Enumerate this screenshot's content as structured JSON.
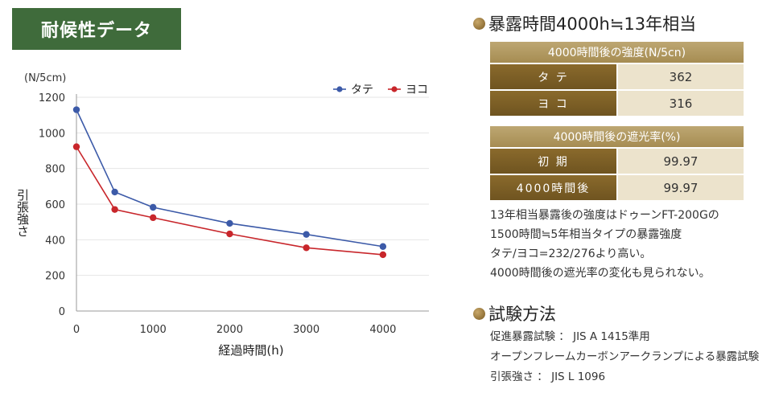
{
  "header": {
    "title": "耐候性データ"
  },
  "chart_data": {
    "type": "line",
    "unit_label": "(N/5cm)",
    "xlabel": "経過時間(h)",
    "ylabel": "引張強さ",
    "xlim": [
      0,
      4600
    ],
    "ylim": [
      0,
      1200
    ],
    "x_ticks": [
      0,
      1000,
      2000,
      3000,
      4000
    ],
    "y_ticks": [
      0,
      200,
      400,
      600,
      800,
      1000,
      1200
    ],
    "legend_position": "top-right",
    "grid": true,
    "series": [
      {
        "name": "タテ",
        "color": "#3c5aa8",
        "points": [
          [
            0,
            1130
          ],
          [
            500,
            668
          ],
          [
            1000,
            582
          ],
          [
            2000,
            492
          ],
          [
            3000,
            430
          ],
          [
            4000,
            362
          ]
        ]
      },
      {
        "name": "ヨコ",
        "color": "#c8262b",
        "points": [
          [
            0,
            922
          ],
          [
            500,
            570
          ],
          [
            1000,
            524
          ],
          [
            2000,
            433
          ],
          [
            3000,
            355
          ],
          [
            4000,
            316
          ]
        ]
      }
    ]
  },
  "exposure": {
    "heading": "暴露時間4000h≒13年相当",
    "strength_table": {
      "header": "4000時間後の強度(N/5cn)",
      "rows": [
        {
          "label": "タ テ",
          "value": "362"
        },
        {
          "label": "ヨ コ",
          "value": "316"
        }
      ]
    },
    "shading_table": {
      "header": "4000時間後の遮光率(%)",
      "rows": [
        {
          "label": "初 期",
          "value": "99.97"
        },
        {
          "label": "4000時間後",
          "value": "99.97"
        }
      ]
    },
    "description": [
      "13年相当暴露後の強度はドゥーンFT-200Gの",
      "1500時間≒5年相当タイプの暴露強度",
      "タテ/ヨコ=232/276より高い。",
      "4000時間後の遮光率の変化も見られない。"
    ]
  },
  "method": {
    "heading": "試験方法",
    "lines": [
      "促進暴露試験 ： JIS A 1415準用",
      "オープンフレームカーボンアークランプによる暴露試験",
      "引張強さ ： JIS L 1096"
    ]
  }
}
